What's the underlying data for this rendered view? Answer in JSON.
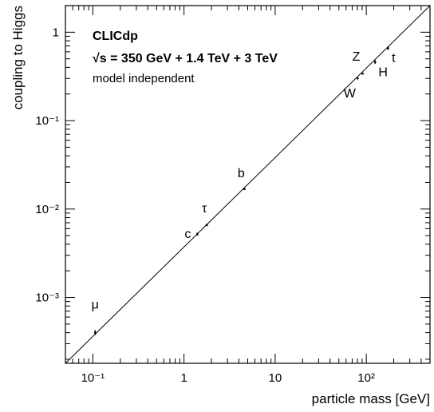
{
  "chart_data": {
    "type": "scatter",
    "xscale": "log",
    "yscale": "log",
    "xlim": [
      0.05,
      500
    ],
    "ylim": [
      0.00018,
      2
    ],
    "xlabel": "particle mass [GeV]",
    "ylabel": "coupling to Higgs",
    "annotations": {
      "title": "CLICdp",
      "energy": "√s = 350 GeV + 1.4 TeV + 3 TeV",
      "method": "model independent"
    },
    "x_tick_labels": [
      "10⁻¹",
      "1",
      "10",
      "10²"
    ],
    "y_tick_labels": [
      "10⁻³",
      "10⁻²",
      "10⁻¹",
      "1"
    ],
    "x_major_ticks": [
      0.1,
      1,
      10,
      100
    ],
    "y_major_ticks": [
      0.001,
      0.01,
      0.1,
      1
    ],
    "reference_line": {
      "description": "mass proportional coupling",
      "from": [
        0.05,
        0.00018
      ],
      "to": [
        500,
        2
      ]
    },
    "points": [
      {
        "label": "μ",
        "x": 0.106,
        "y": 0.0004,
        "err": 2.5e-05
      },
      {
        "label": "c",
        "x": 1.4,
        "y": 0.0052,
        "err": 0.0002
      },
      {
        "label": "τ",
        "x": 1.78,
        "y": 0.0066,
        "err": 0.0002
      },
      {
        "label": "b",
        "x": 4.6,
        "y": 0.0168,
        "err": 0.0003
      },
      {
        "label": "W",
        "x": 80.4,
        "y": 0.3,
        "err": 0.004
      },
      {
        "label": "Z",
        "x": 91.2,
        "y": 0.34,
        "err": 0.004
      },
      {
        "label": "H",
        "x": 125,
        "y": 0.46,
        "err": 0.02
      },
      {
        "label": "t",
        "x": 173,
        "y": 0.66,
        "err": 0.03
      }
    ]
  }
}
